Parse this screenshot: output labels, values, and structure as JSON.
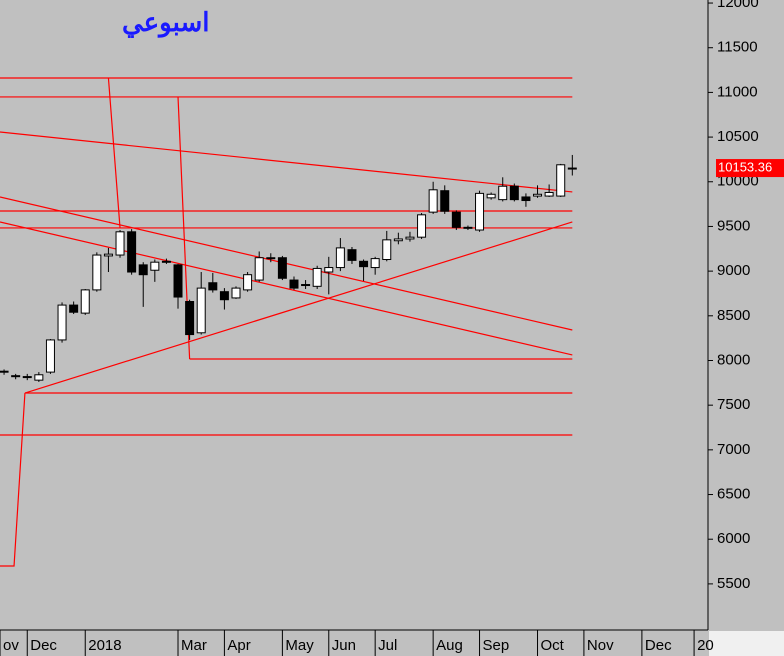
{
  "chart_data": {
    "type": "candlestick",
    "title": "اسبوعي",
    "x": [
      0,
      1,
      2,
      3,
      4,
      5,
      6,
      7,
      8,
      9,
      10,
      11,
      12,
      13,
      14,
      15,
      16,
      17,
      18,
      19,
      20,
      21,
      22,
      23,
      24,
      25,
      26,
      27,
      28,
      29,
      30,
      31,
      32,
      33,
      34,
      35,
      36,
      37,
      38,
      39,
      40,
      41,
      42,
      43,
      44,
      45,
      46,
      47,
      48,
      49
    ],
    "open": [
      7880,
      7820,
      7820,
      7780,
      7870,
      8230,
      8620,
      8530,
      8790,
      9170,
      9180,
      9440,
      9070,
      9010,
      9100,
      9070,
      8660,
      8310,
      8870,
      8770,
      8700,
      8790,
      8900,
      9140,
      9150,
      8900,
      8840,
      8830,
      8990,
      9040,
      9240,
      9110,
      9040,
      9130,
      9340,
      9360,
      9380,
      9660,
      9900,
      9660,
      9490,
      9460,
      9820,
      9800,
      9950,
      9830,
      9840,
      9840,
      9840,
      10150
    ],
    "high": [
      7900,
      7850,
      7850,
      7870,
      8240,
      8650,
      8660,
      8800,
      9210,
      9260,
      9460,
      9470,
      9100,
      9130,
      9140,
      9080,
      8680,
      8990,
      8980,
      8810,
      8830,
      8990,
      9220,
      9200,
      9170,
      8940,
      8900,
      9060,
      9160,
      9370,
      9270,
      9130,
      9160,
      9450,
      9430,
      9440,
      9650,
      10000,
      9960,
      9680,
      9510,
      9900,
      9880,
      10050,
      9980,
      9870,
      9960,
      9970,
      10200,
      10300
    ],
    "low": [
      7840,
      7790,
      7780,
      7760,
      7850,
      8200,
      8520,
      8510,
      8770,
      8990,
      9150,
      8960,
      8600,
      8880,
      9080,
      8580,
      8230,
      8290,
      8760,
      8570,
      8690,
      8770,
      8880,
      9100,
      8900,
      8790,
      8800,
      8800,
      8740,
      9000,
      9080,
      8890,
      8960,
      9110,
      9300,
      9330,
      9360,
      9640,
      9640,
      9460,
      9460,
      9440,
      9800,
      9780,
      9780,
      9720,
      9820,
      9830,
      9830,
      10070
    ],
    "close": [
      7870,
      7830,
      7810,
      7840,
      8230,
      8620,
      8540,
      8790,
      9180,
      9190,
      9440,
      8990,
      8960,
      9100,
      9110,
      8710,
      8290,
      8810,
      8790,
      8680,
      8810,
      8960,
      9150,
      9150,
      8920,
      8810,
      8850,
      9030,
      9040,
      9260,
      9120,
      9050,
      9140,
      9350,
      9360,
      9380,
      9630,
      9910,
      9670,
      9490,
      9480,
      9870,
      9860,
      9950,
      9800,
      9790,
      9860,
      9880,
      10190,
      10153.36
    ],
    "up_color": "#ffffff",
    "down_color": "#000000",
    "line_color": "#ff0000",
    "lines": [
      {
        "x": [
          -0.35,
          49
        ],
        "y": [
          11161,
          11161
        ]
      },
      {
        "x": [
          -0.35,
          49
        ],
        "y": [
          10949,
          10949
        ]
      },
      {
        "x": [
          -0.35,
          49
        ],
        "y": [
          9673,
          9673
        ]
      },
      {
        "x": [
          -0.35,
          49
        ],
        "y": [
          9483,
          9483
        ]
      },
      {
        "x": [
          16,
          49
        ],
        "y": [
          8017,
          8017
        ]
      },
      {
        "x": [
          1.8,
          49
        ],
        "y": [
          7636,
          7636
        ]
      },
      {
        "x": [
          -0.35,
          49
        ],
        "y": [
          7166,
          7166
        ]
      },
      {
        "x": [
          9,
          10
        ],
        "y": [
          11161,
          9483
        ]
      },
      {
        "x": [
          15,
          16
        ],
        "y": [
          10949,
          8017
        ]
      },
      {
        "x": [
          -0.35,
          0.86,
          1.8
        ],
        "y": [
          5700,
          5700,
          7636
        ]
      },
      {
        "x": [
          -0.35,
          49
        ],
        "y": [
          10557,
          9886
        ]
      },
      {
        "x": [
          -0.35,
          49
        ],
        "y": [
          9830,
          8341
        ]
      },
      {
        "x": [
          -0.35,
          49
        ],
        "y": [
          9550,
          8062
        ]
      },
      {
        "x": [
          1.8,
          49
        ],
        "y": [
          7636,
          9550
        ]
      }
    ],
    "xlim": [
      -0.35,
      60.7
    ],
    "xticks": [
      {
        "value": -0.35,
        "label": "ov"
      },
      {
        "value": 2,
        "label": "Dec"
      },
      {
        "value": 7,
        "label": "2018"
      },
      {
        "value": 15,
        "label": "Mar"
      },
      {
        "value": 19,
        "label": "Apr"
      },
      {
        "value": 24,
        "label": "May"
      },
      {
        "value": 28,
        "label": "Jun"
      },
      {
        "value": 32,
        "label": "Jul"
      },
      {
        "value": 37,
        "label": "Aug"
      },
      {
        "value": 41,
        "label": "Sep"
      },
      {
        "value": 46,
        "label": "Oct"
      },
      {
        "value": 50,
        "label": "Nov"
      },
      {
        "value": 55,
        "label": "Dec"
      },
      {
        "value": 59.5,
        "label": "20"
      }
    ],
    "ylim": [
      4984,
      12034
    ],
    "yticks": [
      5500,
      6000,
      6500,
      7000,
      7500,
      8000,
      8500,
      9000,
      9500,
      10000,
      10500,
      11000,
      11500,
      12000
    ]
  }
}
